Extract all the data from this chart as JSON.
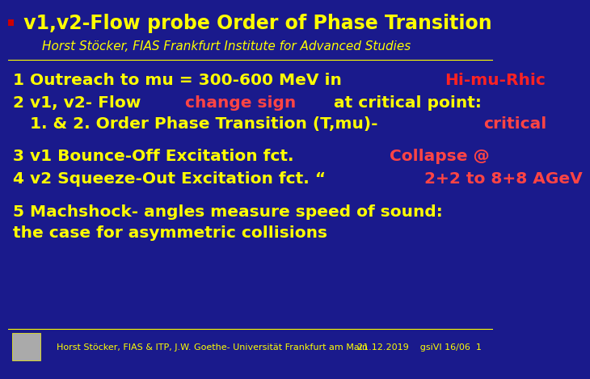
{
  "bg_color": "#1a1a8c",
  "title_text": " v1,v2-Flow probe Order of Phase Transition",
  "title_color": "#ffff00",
  "title_fontsize": 17,
  "subtitle_text": "Horst Stöcker, FIAS Frankfurt Institute for Advanced Studies",
  "subtitle_color": "#ffff00",
  "subtitle_fontsize": 11,
  "footer_left": "Horst Stöcker, FIAS & ITP, J.W. Goethe- Universität Frankfurt am Main",
  "footer_right": "21.12.2019    gsiVI 16/06  1",
  "footer_color": "#ffff00",
  "footer_fontsize": 8,
  "line1_parts": [
    {
      "text": "1 Outreach to mu = 300-600 MeV in ",
      "color": "#ffff00",
      "bold": true
    },
    {
      "text": "Hi-mu-Rhic",
      "color": "#ff2222",
      "bold": true
    }
  ],
  "line2_parts": [
    {
      "text": "2 v1, v2- Flow ",
      "color": "#ffff00",
      "bold": true
    },
    {
      "text": "change sign",
      "color": "#ff4444",
      "bold": true
    },
    {
      "text": " at critical point:",
      "color": "#ffff00",
      "bold": true
    }
  ],
  "line3_parts": [
    {
      "text": "   1. & 2. Order Phase Transition (T,mu)-",
      "color": "#ffff00",
      "bold": true
    },
    {
      "text": "critical",
      "color": "#ff4444",
      "bold": true
    }
  ],
  "line4_parts": [
    {
      "text": "3 v1 Bounce-Off Excitation fct.  ",
      "color": "#ffff00",
      "bold": true
    },
    {
      "text": "Collapse @",
      "color": "#ff4444",
      "bold": true
    }
  ],
  "line5_parts": [
    {
      "text": "4 v2 Squeeze-Out Excitation fct. “ ",
      "color": "#ffff00",
      "bold": true
    },
    {
      "text": "2+2 to 8+8 AGeV",
      "color": "#ff4444",
      "bold": true
    }
  ],
  "line6_parts": [
    {
      "text": "5 Machshock- angles measure speed of sound:",
      "color": "#ffff00",
      "bold": true
    }
  ],
  "line7_parts": [
    {
      "text": "the case for asymmetric collisions",
      "color": "#ffff00",
      "bold": true
    }
  ],
  "main_fontsize": 14.5,
  "red_dot_color": "#cc0000"
}
